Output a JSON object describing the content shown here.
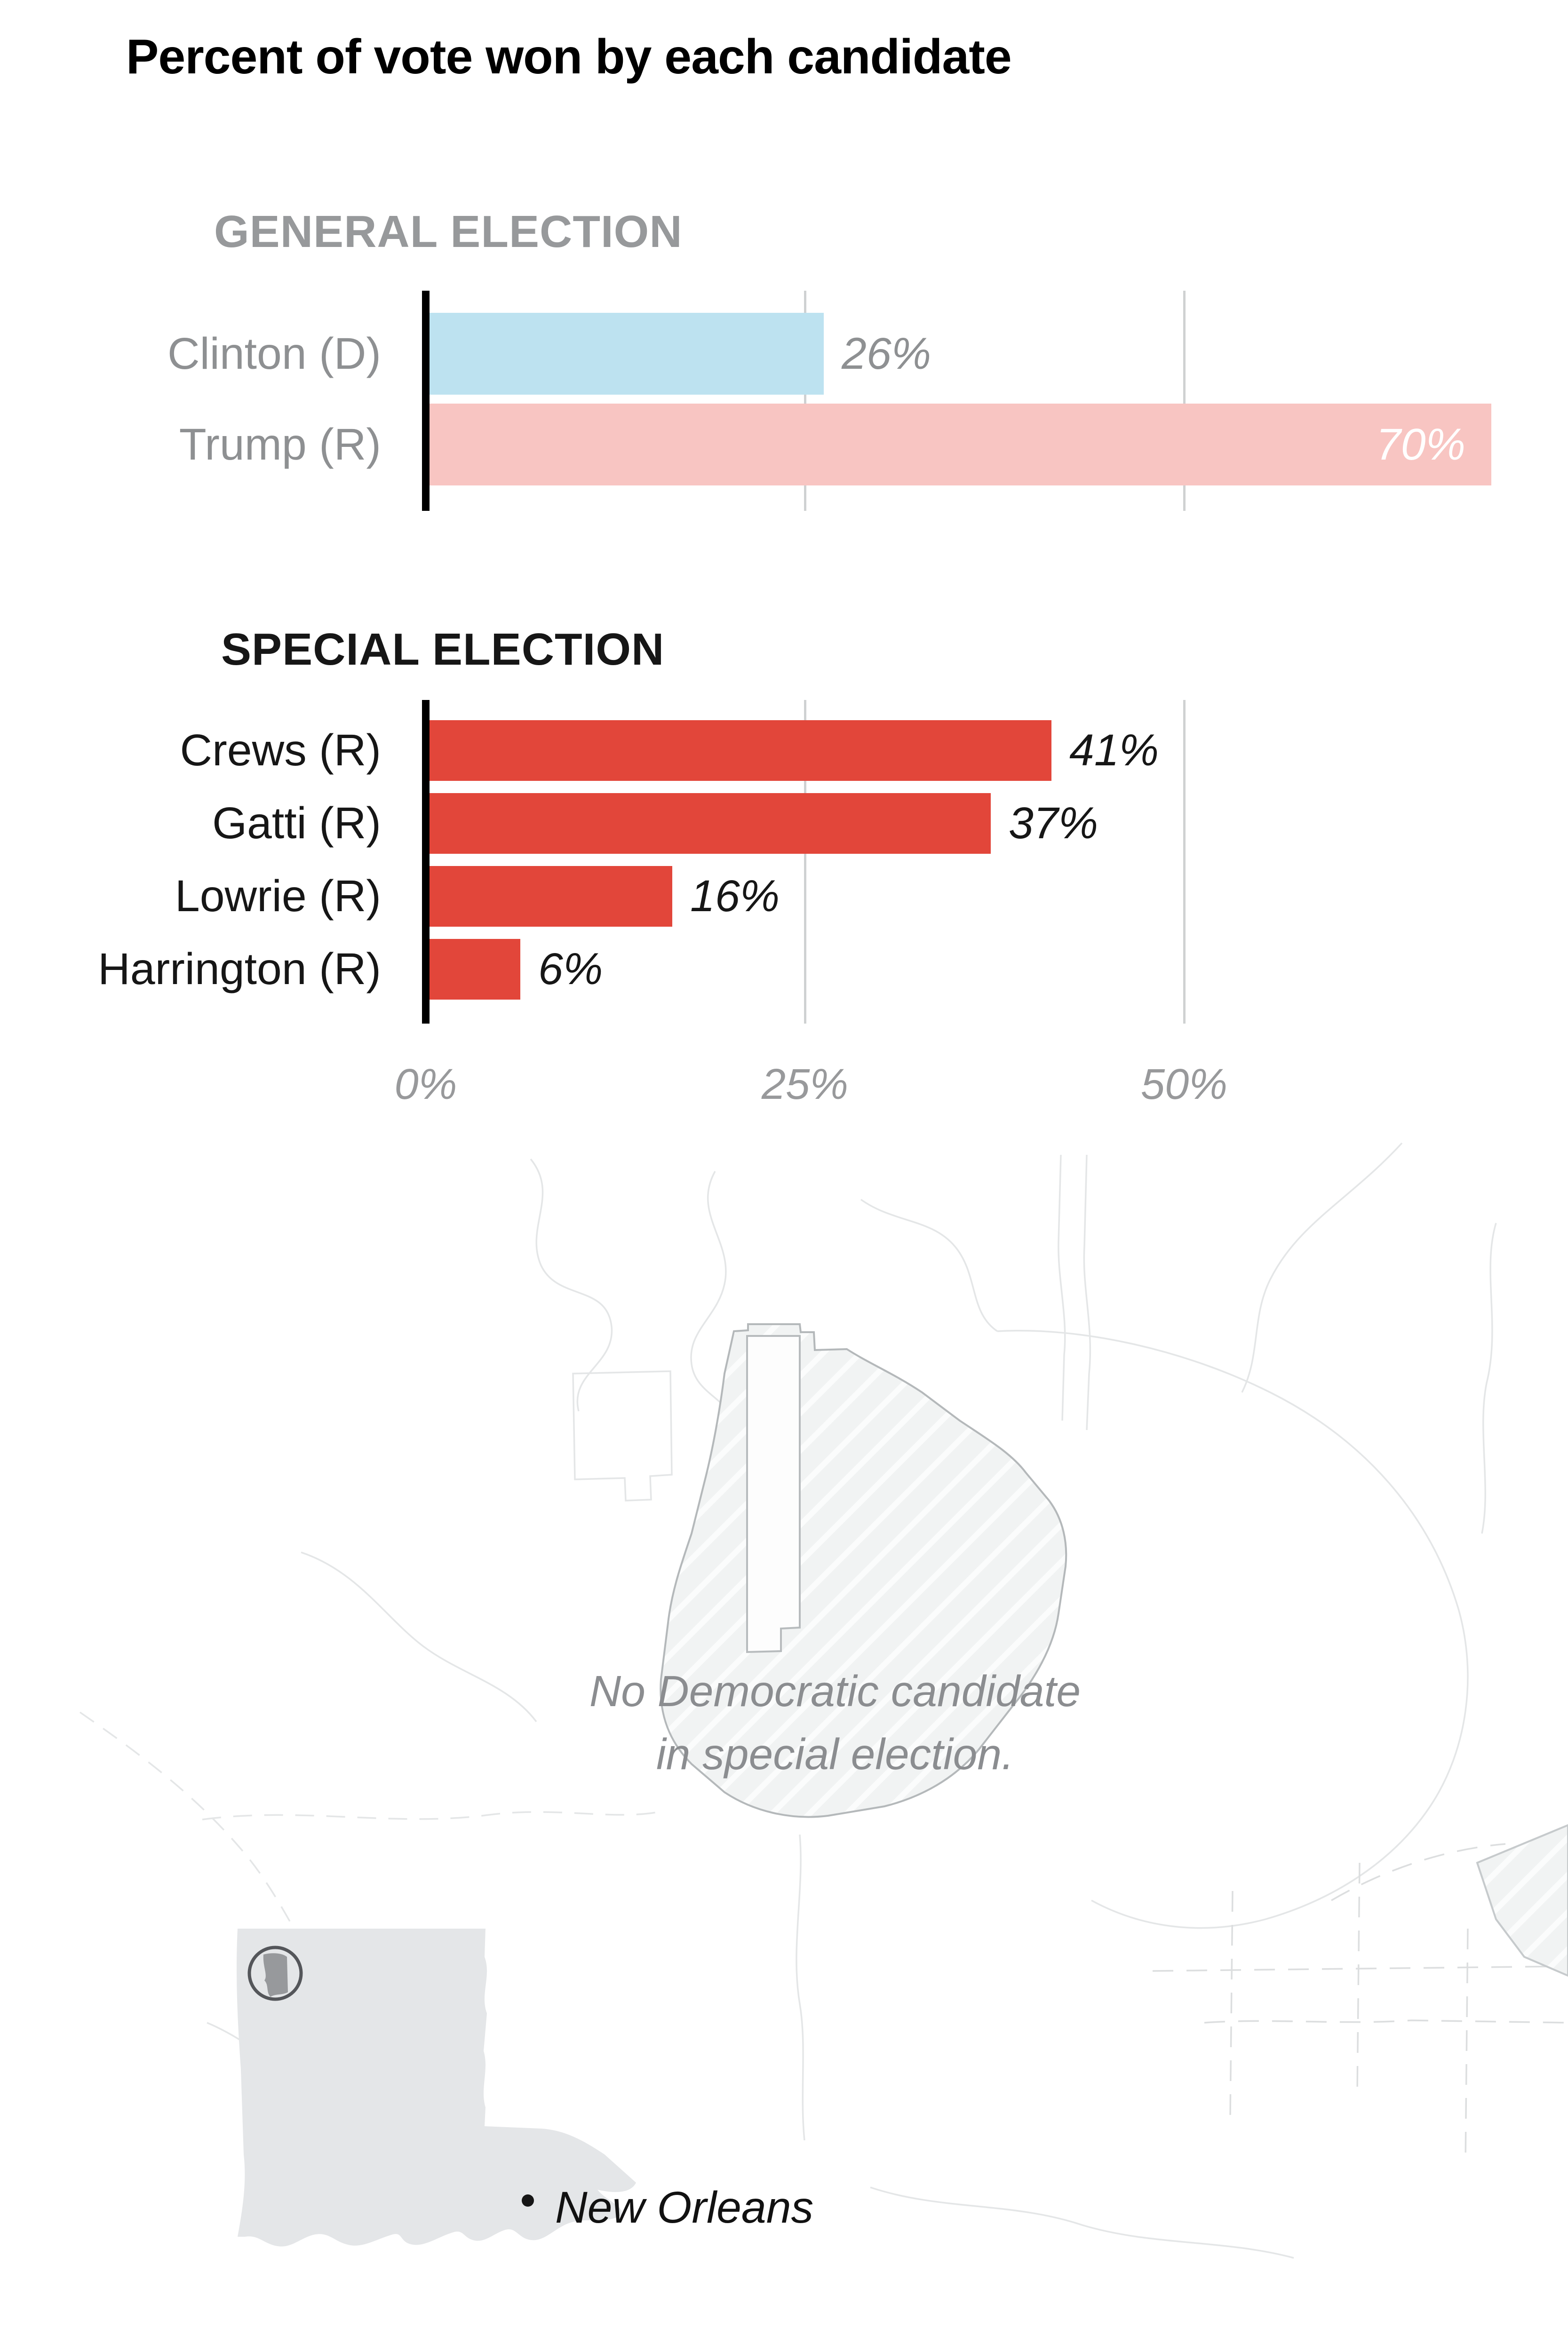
{
  "title": "Percent of vote won by each candidate",
  "chart_data": [
    {
      "type": "bar",
      "orientation": "horizontal",
      "section_title": "GENERAL ELECTION",
      "categories": [
        "Clinton (D)",
        "Trump (R)"
      ],
      "values": [
        26,
        70
      ],
      "value_labels": [
        "26%",
        "70%"
      ],
      "bar_colors": [
        "#bde2f0",
        "#f8c5c2"
      ],
      "value_label_placement": [
        "outside",
        "inside"
      ],
      "xlim": [
        0,
        75
      ],
      "gridlines_pct": [
        25,
        50
      ],
      "axis_ticks": []
    },
    {
      "type": "bar",
      "orientation": "horizontal",
      "section_title": "SPECIAL ELECTION",
      "categories": [
        "Crews (R)",
        "Gatti (R)",
        "Lowrie (R)",
        "Harrington (R)"
      ],
      "values": [
        41,
        37,
        16,
        6
      ],
      "value_labels": [
        "41%",
        "37%",
        "16%",
        "6%"
      ],
      "bar_colors": [
        "#e2463a",
        "#e2463a",
        "#e2463a",
        "#e2463a"
      ],
      "value_label_placement": [
        "outside",
        "outside",
        "outside",
        "outside"
      ],
      "xlim": [
        0,
        75
      ],
      "gridlines_pct": [
        25,
        50
      ],
      "axis_ticks": [
        {
          "label": "0%",
          "value": 0
        },
        {
          "label": "25%",
          "value": 25
        },
        {
          "label": "50%",
          "value": 50
        }
      ]
    }
  ],
  "map": {
    "annotation_line1": "No Democratic candidate",
    "annotation_line2": "in special election.",
    "city_label": "New Orleans",
    "city_marker": "dot-icon",
    "inset_marker": "circle-locator-icon"
  },
  "colors": {
    "dem_blue": "#bde2f0",
    "rep_pink": "#f8c5c2",
    "special_red": "#e2463a",
    "gridline": "#cfd1d2",
    "axis": "#000000",
    "muted_text": "#8e9092",
    "header_gray": "#97999b",
    "text": "#161616",
    "map_line": "#e4e6e7",
    "hatch_fill": "#f1f3f3"
  }
}
